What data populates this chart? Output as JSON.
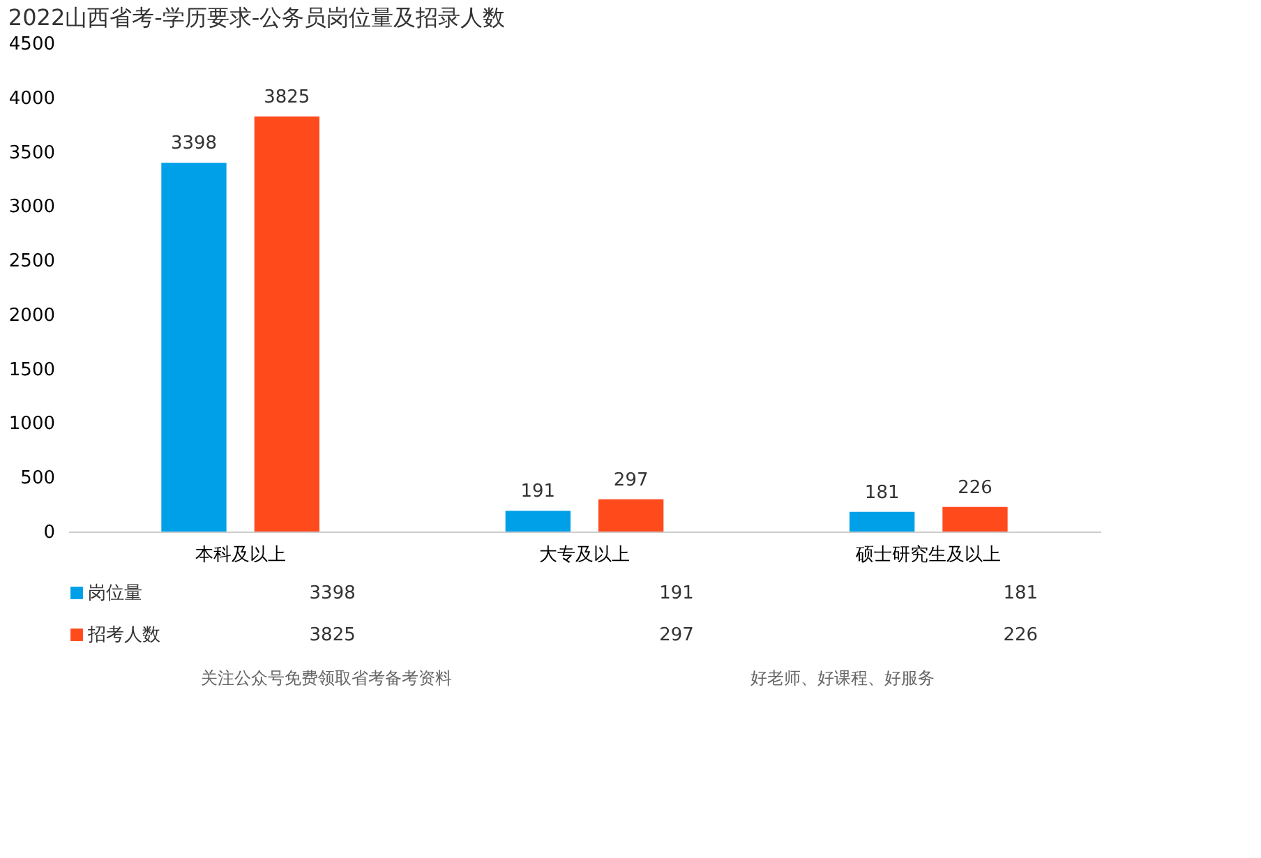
{
  "chart_data": {
    "type": "bar",
    "title": "2022山西省考-学历要求-公务员岗位量及招录人数",
    "categories": [
      "本科及以上",
      "大专及以上",
      "硕士研究生及以上"
    ],
    "series": [
      {
        "name": "岗位量",
        "color": "#00a0e9",
        "values": [
          3398,
          191,
          181
        ],
        "value_labels": [
          "3398",
          "191",
          "181"
        ]
      },
      {
        "name": "招考人数",
        "color": "#ff4a1c",
        "values": [
          3825,
          297,
          226
        ],
        "value_labels": [
          "3825",
          "297",
          "226"
        ]
      }
    ],
    "ylim": [
      0,
      4500
    ],
    "yticks": [
      0,
      500,
      1000,
      1500,
      2000,
      2500,
      3000,
      3500,
      4000,
      4500
    ],
    "grid": false,
    "data_labels": true,
    "legend": "bottom left",
    "annotations": [
      "关注公众号免费领取省考备考资料",
      "好老师、好课程、好服务"
    ]
  }
}
